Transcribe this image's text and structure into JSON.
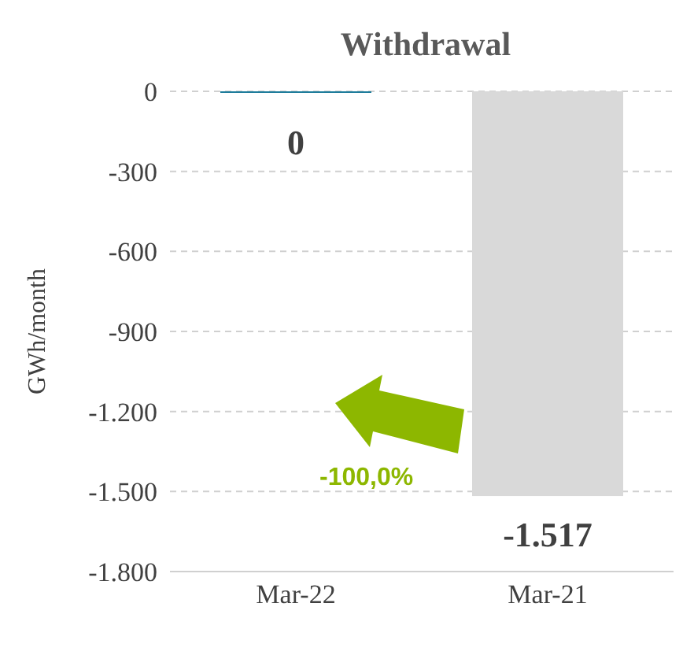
{
  "chart_data": {
    "type": "bar",
    "title": "Withdrawal",
    "ylabel": "GWh/month",
    "categories": [
      "Mar-22",
      "Mar-21"
    ],
    "values": [
      0,
      -1517
    ],
    "colors": [
      "#1f7d9c",
      "#d9d9d9"
    ],
    "value_labels": [
      "0",
      "-1.517"
    ],
    "ylim": [
      -1800,
      0
    ],
    "yticks": [
      {
        "value": -1800,
        "label": "-1.800"
      },
      {
        "value": -1500,
        "label": "-1.500"
      },
      {
        "value": -1200,
        "label": "-1.200"
      },
      {
        "value": -900,
        "label": "-900"
      },
      {
        "value": -600,
        "label": "-600"
      },
      {
        "value": -300,
        "label": "-300"
      },
      {
        "value": 0,
        "label": "0"
      }
    ],
    "grid": "y",
    "annotations": [
      "-100,0%"
    ]
  }
}
